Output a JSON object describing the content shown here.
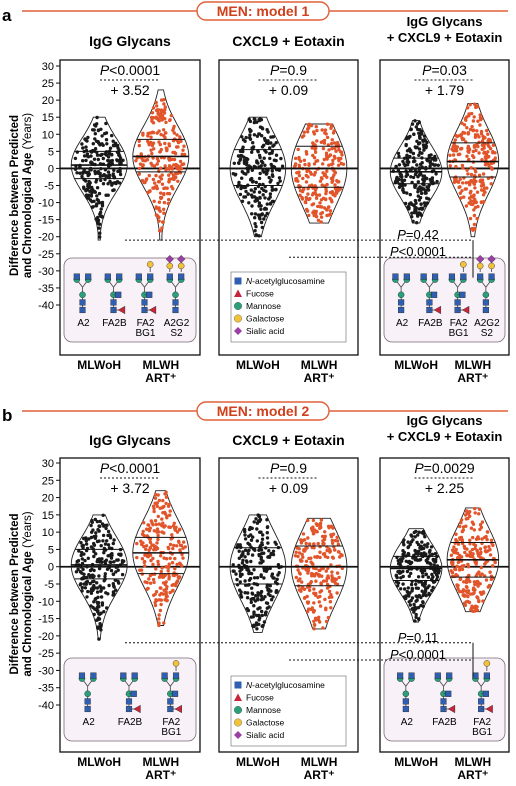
{
  "panels": [
    {
      "letter": "a",
      "model_title": "MEN: model 1",
      "ylabel_line1": "Difference between Predicted",
      "ylabel_line2": "and Chronological Age (Years)",
      "x_categories": [
        "MLWoH",
        "MLWH ART⁺"
      ],
      "chart_data": [
        {
          "type": "violin-scatter",
          "title": "IgG Glycans",
          "categories": [
            "MLWoH",
            "MLWH ART⁺"
          ],
          "ylim": [
            -40,
            30
          ],
          "yticks": [
            30,
            25,
            20,
            15,
            10,
            5,
            0,
            -5,
            -10,
            -15,
            -20,
            -25,
            -30,
            -35,
            -40
          ],
          "pvalue": "P<0.0001",
          "difference": "+ 3.52",
          "medians": [
            1.0,
            3.5
          ],
          "quartiles": [
            [
              -3,
              5
            ],
            [
              -1,
              8.5
            ]
          ],
          "ranges": [
            [
              -21,
              15
            ],
            [
              -21,
              23
            ]
          ],
          "glycans": [
            "A2",
            "FA2B",
            "FA2\nBG1",
            "A2G2\nS2"
          ]
        },
        {
          "type": "violin-scatter",
          "title": "CXCL9 + Eotaxin",
          "categories": [
            "MLWoH",
            "MLWH ART⁺"
          ],
          "ylim": [
            -40,
            30
          ],
          "pvalue": "P=0.9",
          "difference": "+ 0.09",
          "medians": [
            0,
            0
          ],
          "quartiles": [
            [
              -5,
              5.5
            ],
            [
              -5.5,
              6.5
            ]
          ],
          "ranges": [
            [
              -20,
              15
            ],
            [
              -16,
              13
            ]
          ]
        },
        {
          "type": "violin-scatter",
          "title_line1": "IgG Glycans",
          "title_line2": "+ CXCL9 + Eotaxin",
          "categories": [
            "MLWoH",
            "MLWH ART⁺"
          ],
          "ylim": [
            -40,
            30
          ],
          "pvalue": "P=0.03",
          "difference": "+ 1.79",
          "medians": [
            -1,
            2.0
          ],
          "quartiles": [
            [
              -4.5,
              3
            ],
            [
              -2.5,
              7.5
            ]
          ],
          "ranges": [
            [
              -16,
              14
            ],
            [
              -20,
              19
            ]
          ],
          "glycans": [
            "A2",
            "FA2B",
            "FA2\nBG1",
            "A2G2\nS2"
          ]
        }
      ],
      "cross_comparisons": [
        {
          "label": "P=0.42",
          "y": -21
        },
        {
          "label": "P<0.0001",
          "y": -26
        }
      ]
    },
    {
      "letter": "b",
      "model_title": "MEN: model 2",
      "ylabel_line1": "Difference between Predicted",
      "ylabel_line2": "and Chronological Age (Years)",
      "x_categories": [
        "MLWoH",
        "MLWH ART⁺"
      ],
      "chart_data": [
        {
          "type": "violin-scatter",
          "title": "IgG Glycans",
          "categories": [
            "MLWoH",
            "MLWH ART⁺"
          ],
          "ylim": [
            -40,
            30
          ],
          "yticks": [
            30,
            25,
            20,
            15,
            10,
            5,
            0,
            -5,
            -10,
            -15,
            -20,
            -25,
            -30,
            -35,
            -40
          ],
          "pvalue": "P<0.0001",
          "difference": "+ 3.72",
          "medians": [
            0.5,
            4.0
          ],
          "quartiles": [
            [
              -3.5,
              5
            ],
            [
              -2,
              8.5
            ]
          ],
          "ranges": [
            [
              -21,
              15
            ],
            [
              -17,
              22
            ]
          ],
          "glycans": [
            "A2",
            "FA2B",
            "FA2\nBG1"
          ]
        },
        {
          "type": "violin-scatter",
          "title": "CXCL9 + Eotaxin",
          "categories": [
            "MLWoH",
            "MLWH ART⁺"
          ],
          "ylim": [
            -40,
            30
          ],
          "pvalue": "P=0.9",
          "difference": "+ 0.09",
          "medians": [
            0,
            0
          ],
          "quartiles": [
            [
              -5,
              5.5
            ],
            [
              -5.5,
              6
            ]
          ],
          "ranges": [
            [
              -19,
              15
            ],
            [
              -18,
              14
            ]
          ]
        },
        {
          "type": "violin-scatter",
          "title_line1": "IgG Glycans",
          "title_line2": "+ CXCL9 + Eotaxin",
          "categories": [
            "MLWoH",
            "MLWH ART⁺"
          ],
          "ylim": [
            -40,
            30
          ],
          "pvalue": "P=0.0029",
          "difference": "+ 2.25",
          "medians": [
            -0.5,
            2.0
          ],
          "quartiles": [
            [
              -4,
              3
            ],
            [
              -3,
              7
            ]
          ],
          "ranges": [
            [
              -16,
              11
            ],
            [
              -13,
              17
            ]
          ],
          "glycans": [
            "A2",
            "FA2B",
            "FA2\nBG1"
          ]
        }
      ],
      "cross_comparisons": [
        {
          "label": "P=0.11",
          "y": -22
        },
        {
          "label": "P<0.0001",
          "y": -27
        }
      ]
    }
  ],
  "legend": {
    "items": [
      {
        "label": "N-acetylglucosamine",
        "shape": "square",
        "color": "#2f5fb3"
      },
      {
        "label": "Fucose",
        "shape": "triangle",
        "color": "#c8253a"
      },
      {
        "label": "Mannose",
        "shape": "circle",
        "color": "#2aa079"
      },
      {
        "label": "Galactose",
        "shape": "circle",
        "color": "#f2c23a"
      },
      {
        "label": "Sialic acid",
        "shape": "diamond",
        "color": "#9b3fa6"
      }
    ]
  },
  "colors": {
    "mlwoh_dots": "#1a1a1a",
    "mlwh_dots": "#e2542a",
    "banner_border": "#e0603a",
    "banner_text": "#d0401c",
    "inset_bg": "#f8f1f7"
  }
}
